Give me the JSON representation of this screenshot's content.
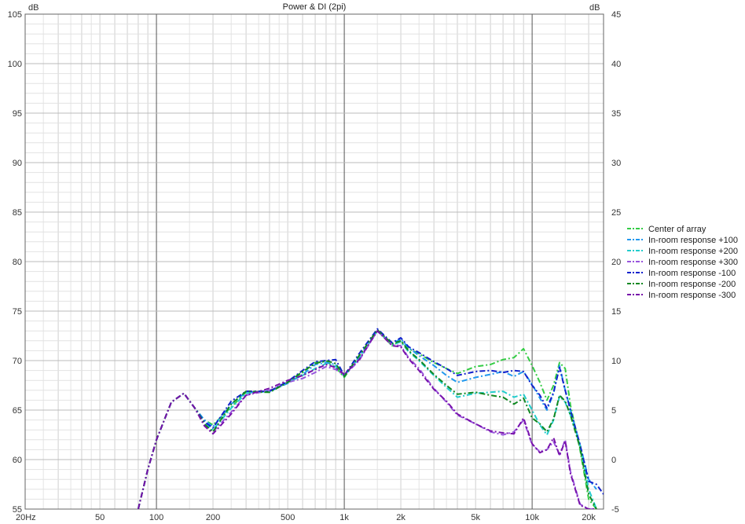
{
  "chart_data": {
    "type": "line",
    "title": "Power & DI (2pi)",
    "left_axis_unit": "dB",
    "right_axis_unit": "dB",
    "x_scale": "log",
    "xlim": [
      20,
      24000
    ],
    "ylim": [
      55,
      105
    ],
    "ylim_right": [
      -5,
      45
    ],
    "x_tick_labels": [
      {
        "value": 20,
        "label": "20Hz"
      },
      {
        "value": 50,
        "label": "50"
      },
      {
        "value": 100,
        "label": "100"
      },
      {
        "value": 200,
        "label": "200"
      },
      {
        "value": 500,
        "label": "500"
      },
      {
        "value": 1000,
        "label": "1k"
      },
      {
        "value": 2000,
        "label": "2k"
      },
      {
        "value": 5000,
        "label": "5k"
      },
      {
        "value": 10000,
        "label": "10k"
      },
      {
        "value": 20000,
        "label": "20k"
      }
    ],
    "y_ticks_left": [
      55,
      60,
      65,
      70,
      75,
      80,
      85,
      90,
      95,
      100,
      105
    ],
    "y_ticks_right": [
      -5,
      0,
      5,
      10,
      15,
      20,
      25,
      30,
      35,
      40,
      45
    ],
    "grid": true,
    "legend_position": "right",
    "series": [
      {
        "name": "Center of array",
        "color": "#33cc44",
        "x": [
          80,
          90,
          100,
          120,
          140,
          160,
          180,
          200,
          250,
          300,
          400,
          500,
          600,
          700,
          800,
          900,
          1000,
          1200,
          1500,
          1800,
          2000,
          2200,
          2500,
          3000,
          3500,
          4000,
          5000,
          6000,
          7000,
          8000,
          9000,
          10000,
          11000,
          12000,
          13000,
          14000,
          15000,
          16000,
          18000,
          20000,
          22000
        ],
        "y": [
          55,
          59,
          62,
          65.8,
          66.7,
          65.2,
          64,
          63.5,
          65.3,
          66.8,
          66.8,
          67.8,
          68.8,
          69.8,
          69.9,
          69.3,
          68.3,
          70.5,
          73,
          71.5,
          72,
          71.2,
          70.7,
          69.8,
          69.2,
          68.7,
          69.4,
          69.6,
          70.1,
          70.3,
          71.2,
          69.5,
          67.8,
          66,
          67.5,
          69.8,
          69.2,
          65.5,
          61,
          56,
          55
        ]
      },
      {
        "name": "In-room response +100",
        "color": "#2299ee",
        "x": [
          80,
          90,
          100,
          120,
          140,
          160,
          180,
          200,
          250,
          300,
          400,
          500,
          600,
          700,
          800,
          900,
          1000,
          1200,
          1500,
          1800,
          2000,
          2200,
          2500,
          3000,
          3500,
          4000,
          5000,
          6000,
          7000,
          8000,
          9000,
          10000,
          11000,
          12000,
          13000,
          14000,
          15000,
          16000,
          18000,
          20000,
          22000
        ],
        "y": [
          55,
          59,
          62,
          65.8,
          66.7,
          65.2,
          64,
          63.3,
          65.6,
          66.8,
          66.9,
          67.7,
          68.6,
          69.6,
          69.8,
          69.6,
          68.4,
          70.4,
          73,
          71.7,
          72.2,
          71.3,
          70.5,
          69.5,
          68.5,
          67.8,
          68.3,
          68.6,
          68.9,
          68.4,
          68.9,
          67.6,
          66.2,
          65,
          66.7,
          69.5,
          67,
          65,
          61.5,
          58,
          57
        ]
      },
      {
        "name": "In-room response +200",
        "color": "#22cccc",
        "x": [
          80,
          90,
          100,
          120,
          140,
          160,
          180,
          200,
          250,
          300,
          400,
          500,
          600,
          700,
          800,
          900,
          1000,
          1200,
          1500,
          1800,
          2000,
          2200,
          2500,
          3000,
          3500,
          4000,
          5000,
          6000,
          7000,
          8000,
          9000,
          10000,
          11000,
          12000,
          13000,
          14000,
          15000,
          16000,
          18000,
          20000,
          22000
        ],
        "y": [
          55,
          59,
          62,
          65.8,
          66.7,
          65.2,
          63.8,
          63,
          65.2,
          66.7,
          66.9,
          67.8,
          68.5,
          69.2,
          69.7,
          69.4,
          68.5,
          70.2,
          73,
          71.6,
          71.9,
          70.9,
          70,
          68.5,
          67.3,
          66.3,
          66.7,
          66.8,
          66.9,
          66.3,
          66.6,
          65,
          63.5,
          62.5,
          64,
          66.4,
          65.8,
          64.5,
          61.5,
          57,
          55
        ]
      },
      {
        "name": "In-room response +300",
        "color": "#9955dd",
        "x": [
          80,
          90,
          100,
          120,
          140,
          160,
          180,
          200,
          250,
          300,
          400,
          500,
          600,
          700,
          800,
          900,
          1000,
          1200,
          1500,
          1800,
          2000,
          2200,
          2500,
          3000,
          3500,
          4000,
          5000,
          6000,
          7000,
          8000,
          9000,
          10000,
          11000,
          12000,
          13000,
          14000,
          15000,
          16000,
          18000,
          20000,
          22000
        ],
        "y": [
          55,
          59,
          62,
          65.8,
          66.7,
          65.2,
          63.5,
          62.8,
          64.8,
          66.5,
          67,
          67.8,
          68.2,
          68.8,
          69.4,
          69.1,
          68.5,
          70,
          73,
          71.6,
          71.5,
          70.3,
          69.2,
          67.2,
          65.8,
          64.5,
          63.6,
          62.8,
          62.5,
          62.8,
          64,
          61.5,
          60.8,
          61,
          61.8,
          60.5,
          62,
          58.8,
          55.5,
          55,
          55
        ]
      },
      {
        "name": "In-room response -100",
        "color": "#1122cc",
        "x": [
          80,
          90,
          100,
          120,
          140,
          160,
          180,
          200,
          250,
          300,
          400,
          500,
          600,
          700,
          800,
          900,
          1000,
          1200,
          1500,
          1800,
          2000,
          2200,
          2500,
          3000,
          3500,
          4000,
          5000,
          6000,
          7000,
          8000,
          9000,
          10000,
          11000,
          12000,
          13000,
          14000,
          15000,
          16000,
          18000,
          20000,
          22000,
          24000
        ],
        "y": [
          55,
          59,
          62,
          65.8,
          66.7,
          65.2,
          63.8,
          63.2,
          65.9,
          66.9,
          66.9,
          67.9,
          69,
          69.9,
          70,
          70.1,
          68.5,
          70.7,
          73.2,
          71.8,
          72.3,
          71.4,
          70.8,
          69.9,
          69.2,
          68.5,
          68.9,
          69,
          68.8,
          69,
          68.9,
          67.5,
          66.5,
          65.2,
          66.8,
          69.3,
          67,
          65,
          61.5,
          57.8,
          57.5,
          56.5
        ]
      },
      {
        "name": "In-room response -200",
        "color": "#118822",
        "x": [
          80,
          90,
          100,
          120,
          140,
          160,
          180,
          200,
          250,
          300,
          400,
          500,
          600,
          700,
          800,
          900,
          1000,
          1200,
          1500,
          1800,
          2000,
          2200,
          2500,
          3000,
          3500,
          4000,
          5000,
          6000,
          7000,
          8000,
          9000,
          10000,
          11000,
          12000,
          13000,
          14000,
          15000,
          16000,
          18000,
          20000,
          22000
        ],
        "y": [
          55,
          59,
          62,
          65.8,
          66.7,
          65.2,
          63.6,
          62.8,
          65.6,
          66.9,
          66.8,
          67.8,
          68.9,
          69.7,
          70,
          69.7,
          68.4,
          70.5,
          73.1,
          71.7,
          72,
          71,
          70.1,
          68.6,
          67.5,
          66.6,
          66.8,
          66.5,
          66.3,
          65.6,
          66.2,
          64.2,
          63.6,
          62.8,
          64.1,
          66.5,
          65.9,
          64.5,
          61.2,
          56.5,
          55
        ]
      },
      {
        "name": "In-room response -300",
        "color": "#7711aa",
        "x": [
          80,
          90,
          100,
          120,
          140,
          160,
          180,
          200,
          250,
          300,
          400,
          500,
          600,
          700,
          800,
          900,
          1000,
          1200,
          1500,
          1800,
          2000,
          2200,
          2500,
          3000,
          3500,
          4000,
          5000,
          6000,
          7000,
          8000,
          9000,
          10000,
          11000,
          12000,
          13000,
          14000,
          15000,
          16000,
          18000,
          20000,
          22000
        ],
        "y": [
          55,
          59,
          62,
          65.8,
          66.7,
          65.2,
          63.4,
          62.6,
          64.6,
          66.5,
          67.2,
          68,
          68.5,
          69.1,
          69.6,
          69.3,
          68.6,
          70.1,
          73,
          71.5,
          71.4,
          70.2,
          69,
          67.1,
          65.9,
          64.6,
          63.6,
          62.9,
          62.7,
          62.6,
          64.2,
          61.6,
          60.7,
          61,
          62.2,
          60.4,
          61.9,
          58.6,
          55.4,
          55,
          55
        ]
      }
    ]
  }
}
